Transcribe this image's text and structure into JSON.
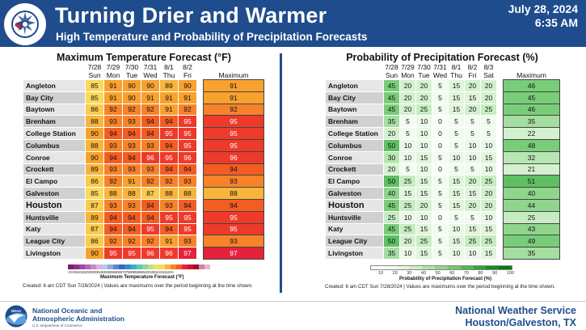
{
  "header": {
    "title": "Turning Drier and Warmer",
    "subtitle": "High Temperature and Probability of Precipitation Forecasts",
    "date": "July 28, 2024",
    "time": "6:35 AM",
    "logo_text": "NATIONAL WEATHER SERVICE"
  },
  "temp_panel": {
    "title": "Maximum Temperature Forecast (°F)",
    "dates": [
      "7/28",
      "7/29",
      "7/30",
      "7/31",
      "8/1",
      "8/2"
    ],
    "days": [
      "Sun",
      "Mon",
      "Tue",
      "Wed",
      "Thu",
      "Fri"
    ],
    "max_header": "Maximum",
    "rows": [
      {
        "city": "Angleton",
        "values": [
          85,
          91,
          90,
          90,
          89,
          90
        ],
        "max": 91
      },
      {
        "city": "Bay City",
        "values": [
          85,
          91,
          90,
          91,
          91,
          91
        ],
        "max": 91
      },
      {
        "city": "Baytown",
        "values": [
          86,
          92,
          92,
          92,
          91,
          92
        ],
        "max": 92
      },
      {
        "city": "Brenham",
        "values": [
          88,
          93,
          93,
          94,
          94,
          95
        ],
        "max": 95
      },
      {
        "city": "College Station",
        "values": [
          90,
          94,
          94,
          94,
          95,
          95
        ],
        "max": 95
      },
      {
        "city": "Columbus",
        "values": [
          88,
          93,
          93,
          93,
          94,
          95
        ],
        "max": 95
      },
      {
        "city": "Conroe",
        "values": [
          90,
          94,
          94,
          96,
          95,
          96
        ],
        "max": 96
      },
      {
        "city": "Crockett",
        "values": [
          89,
          93,
          93,
          93,
          94,
          94
        ],
        "max": 94
      },
      {
        "city": "El Campo",
        "values": [
          86,
          92,
          91,
          92,
          92,
          93
        ],
        "max": 93
      },
      {
        "city": "Galveston",
        "values": [
          85,
          88,
          88,
          87,
          88,
          88
        ],
        "max": 88
      },
      {
        "city": "Houston",
        "values": [
          87,
          93,
          93,
          94,
          93,
          94
        ],
        "max": 94
      },
      {
        "city": "Huntsville",
        "values": [
          89,
          94,
          94,
          94,
          95,
          95
        ],
        "max": 95
      },
      {
        "city": "Katy",
        "values": [
          87,
          94,
          94,
          95,
          94,
          95
        ],
        "max": 95
      },
      {
        "city": "League City",
        "values": [
          86,
          92,
          92,
          92,
          91,
          93
        ],
        "max": 93
      },
      {
        "city": "Livingston",
        "values": [
          90,
          95,
          95,
          96,
          96,
          97
        ],
        "max": 97
      }
    ],
    "colorbar_ticks": "<0<05101520253035404550556065707580859095100105110115120>",
    "colorbar_label": "Maximum Temperature Forecast (°F)",
    "created": "Created: 6 am CDT Sun 7/28/2024  |  Values are maximums over the period beginning at the time shown."
  },
  "pop_panel": {
    "title": "Probability of Precipitation Forecast (%)",
    "dates": [
      "7/28",
      "7/29",
      "7/30",
      "7/31",
      "8/1",
      "8/2",
      "8/3"
    ],
    "days": [
      "Sun",
      "Mon",
      "Tue",
      "Wed",
      "Thu",
      "Fri",
      "Sat"
    ],
    "max_header": "Maximum",
    "rows": [
      {
        "city": "Angleton",
        "values": [
          45,
          20,
          20,
          5,
          15,
          20,
          20
        ],
        "max": 46
      },
      {
        "city": "Bay City",
        "values": [
          45,
          20,
          20,
          5,
          15,
          15,
          20
        ],
        "max": 45
      },
      {
        "city": "Baytown",
        "values": [
          45,
          20,
          25,
          5,
          15,
          20,
          25
        ],
        "max": 46
      },
      {
        "city": "Brenham",
        "values": [
          35,
          5,
          10,
          0,
          5,
          5,
          5
        ],
        "max": 35
      },
      {
        "city": "College Station",
        "values": [
          20,
          5,
          10,
          0,
          5,
          5,
          5
        ],
        "max": 22
      },
      {
        "city": "Columbus",
        "values": [
          50,
          10,
          10,
          0,
          5,
          10,
          10
        ],
        "max": 48
      },
      {
        "city": "Conroe",
        "values": [
          30,
          10,
          15,
          5,
          10,
          10,
          15
        ],
        "max": 32
      },
      {
        "city": "Crockett",
        "values": [
          20,
          5,
          10,
          0,
          5,
          5,
          10
        ],
        "max": 21
      },
      {
        "city": "El Campo",
        "values": [
          50,
          25,
          15,
          5,
          15,
          20,
          25
        ],
        "max": 51
      },
      {
        "city": "Galveston",
        "values": [
          40,
          15,
          15,
          5,
          15,
          15,
          20
        ],
        "max": 40
      },
      {
        "city": "Houston",
        "values": [
          45,
          25,
          20,
          5,
          15,
          20,
          20
        ],
        "max": 44
      },
      {
        "city": "Huntsville",
        "values": [
          25,
          10,
          10,
          0,
          5,
          5,
          10
        ],
        "max": 25
      },
      {
        "city": "Katy",
        "values": [
          45,
          25,
          15,
          5,
          10,
          15,
          15
        ],
        "max": 43
      },
      {
        "city": "League City",
        "values": [
          50,
          20,
          25,
          5,
          15,
          25,
          25
        ],
        "max": 49
      },
      {
        "city": "Livingston",
        "values": [
          35,
          10,
          15,
          5,
          10,
          10,
          15
        ],
        "max": 35
      }
    ],
    "colorbar_ticks": [
      "10",
      "20",
      "30",
      "40",
      "50",
      "60",
      "70",
      "80",
      "90",
      "100"
    ],
    "colorbar_label": "Probability of Precipitation Forecast (%)",
    "created": "Created: 6 am CDT Sun 7/28/2024  |  Values are maximums over the period beginning at the time shown."
  },
  "footer": {
    "noaa_line1": "National Oceanic and",
    "noaa_line2": "Atmospheric Administration",
    "noaa_dept": "U.S. Department of Commerce",
    "noaa_logo_text": "NOAA",
    "nws_name": "National Weather Service",
    "nws_office": "Houston/Galveston, TX"
  }
}
